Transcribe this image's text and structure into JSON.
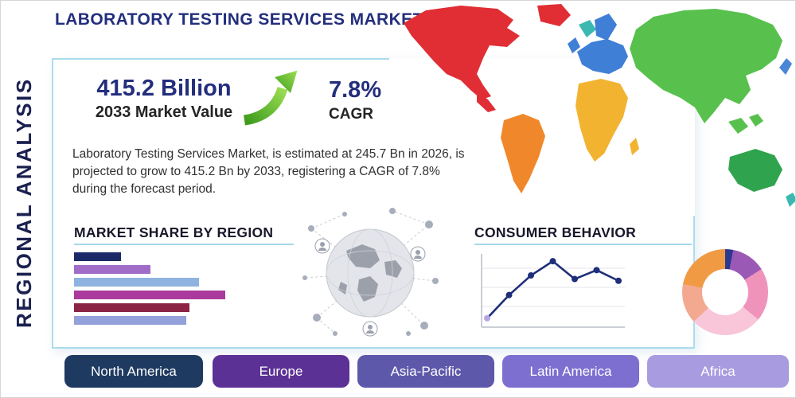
{
  "page": {
    "title": "LABORATORY TESTING SERVICES MARKET",
    "side_label": "REGIONAL ANALYSIS"
  },
  "theme": {
    "navy": "#232e7d",
    "heading_dark": "#17172a",
    "card_border": "#aadcee",
    "underline_blue": "#a2d8ea",
    "arrow_green_dark": "#3f9b1e",
    "arrow_green_light": "#9ade52"
  },
  "highlight": {
    "market_value": "415.2 Billion",
    "market_value_caption": "2033 Market Value",
    "cagr_value": "7.8%",
    "cagr_caption": "CAGR",
    "description": "Laboratory Testing Services Market, is estimated at 245.7 Bn in 2026, is projected to grow to 415.2 Bn by 2033, registering a CAGR of 7.8% during the forecast period."
  },
  "region_buttons": [
    {
      "label": "North America",
      "color": "#1e3a60"
    },
    {
      "label": "Europe",
      "color": "#5c3195"
    },
    {
      "label": "Asia-Pacific",
      "color": "#5e58ab"
    },
    {
      "label": "Latin America",
      "color": "#7c6fd0"
    },
    {
      "label": "Africa",
      "color": "#a89bdf"
    }
  ],
  "map_regions": {
    "north_america": "#e02e34",
    "central_america": "#e02e34",
    "greenland": "#e02e34",
    "iceland": "#3cb8b2",
    "south_america": "#f0882b",
    "europe": "#3f7fd6",
    "scandinavia": "#3f7fd6",
    "uk": "#3f7fd6",
    "africa": "#f2b331",
    "madagascar": "#f2b331",
    "asia": "#58c14e",
    "sea_islands": "#58c14e",
    "japan": "#4a86d8",
    "australia": "#2fa34d",
    "new_zealand": "#3cb8b2"
  },
  "chart_data": [
    {
      "type": "bar",
      "title": "MARKET SHARE BY REGION",
      "orientation": "horizontal",
      "values": [
        30,
        49,
        80,
        97,
        74,
        72
      ],
      "unit": "relative share, % of widest bar (no axis labels shown)",
      "colors": [
        "#1b2a66",
        "#a06cc8",
        "#8fb3e0",
        "#ab3a9e",
        "#8c2446",
        "#94a0da"
      ],
      "grid": false
    },
    {
      "type": "line",
      "title": "CONSUMER BEHAVIOR",
      "x": [
        1,
        2,
        3,
        4,
        5,
        6,
        7
      ],
      "values": [
        10,
        36,
        58,
        74,
        54,
        64,
        52
      ],
      "ylim": [
        0,
        80
      ],
      "line_color": "#1f2e7a",
      "first_marker_color": "#b5a6e3",
      "grid": true
    },
    {
      "type": "pie",
      "subtype": "donut",
      "slices": [
        {
          "value": 3,
          "color": "#2b3990"
        },
        {
          "value": 13,
          "color": "#9b59b6"
        },
        {
          "value": 20,
          "color": "#ef93ba"
        },
        {
          "value": 27,
          "color": "#f8c6d8"
        },
        {
          "value": 15,
          "color": "#f2a98f"
        },
        {
          "value": 22,
          "color": "#f09b44"
        }
      ]
    }
  ]
}
